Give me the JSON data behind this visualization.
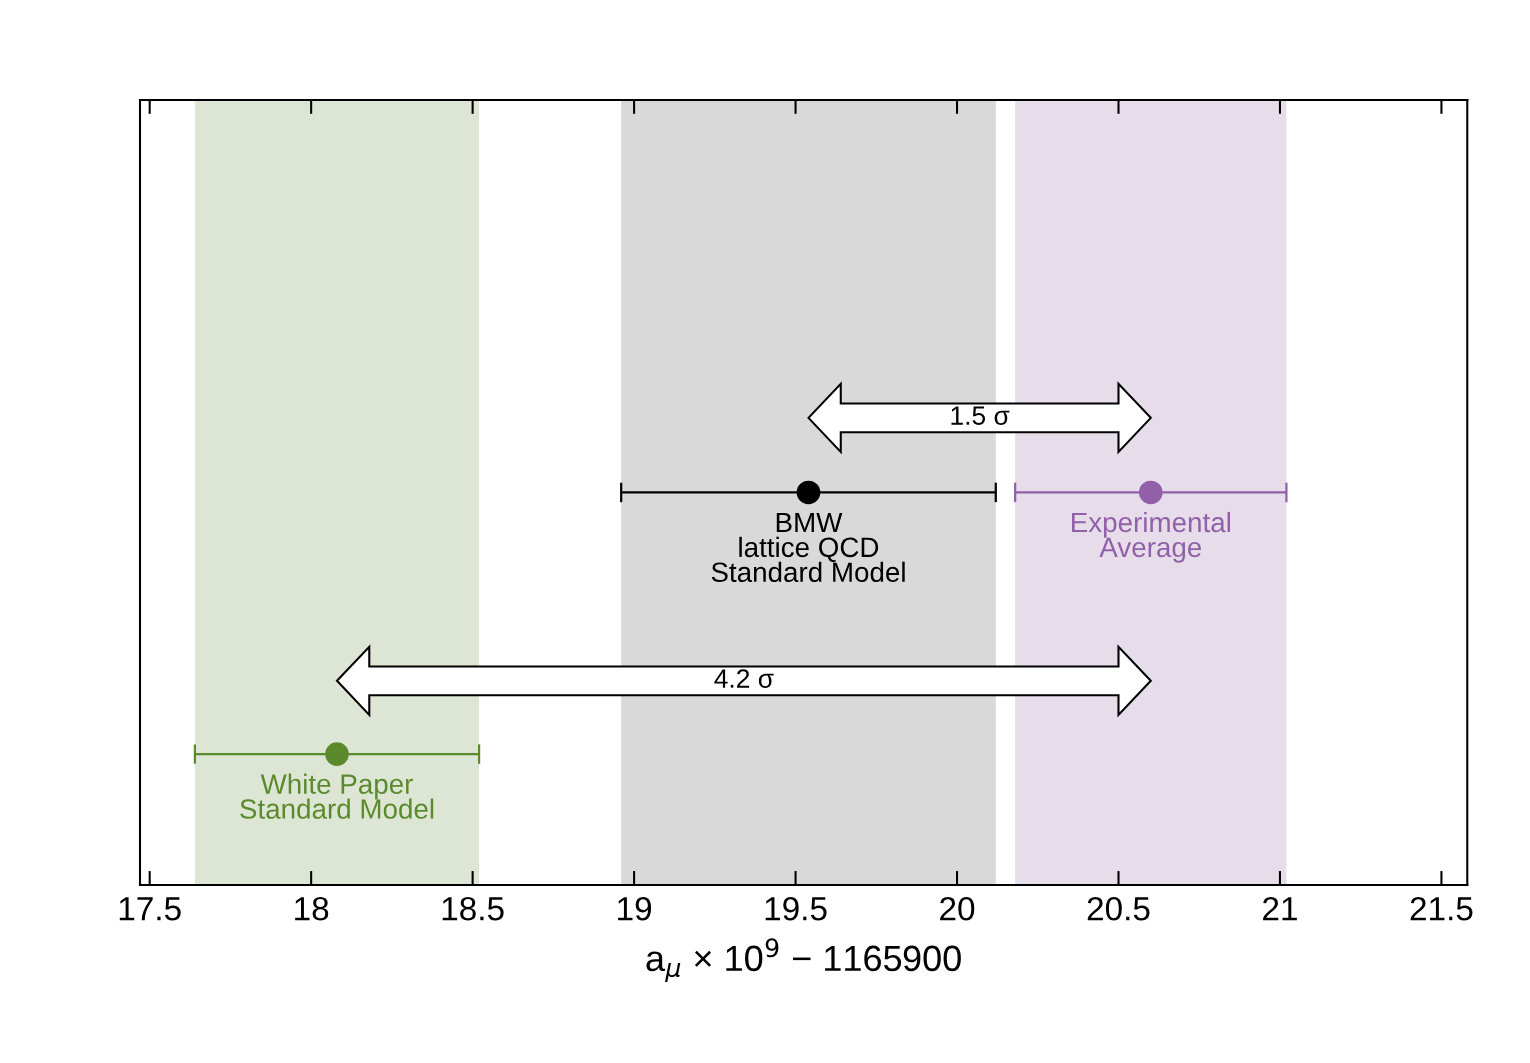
{
  "chart_data": {
    "type": "scatter",
    "orientation": "horizontal",
    "categories": [
      null,
      null,
      null
    ],
    "series": [
      {
        "name": "White Paper\nStandard Model",
        "color": "#5b8a2d",
        "values": [
          null,
          null,
          18.08
        ],
        "errors": [
          null,
          null,
          0.44
        ]
      },
      {
        "name": "BMW\nlattice QCD\nStandard Model",
        "color": "#000000",
        "values": [
          null,
          19.54,
          null
        ],
        "errors": [
          null,
          0.58,
          null
        ]
      },
      {
        "name": "Experimental\nAverage",
        "color": "#9160a8",
        "values": [
          null,
          20.6,
          null
        ],
        "errors": [
          null,
          0.42,
          null
        ]
      }
    ],
    "bands": [
      {
        "axis": "x",
        "from": 17.64,
        "to": 18.52,
        "color": "#dde6d5"
      },
      {
        "axis": "x",
        "from": 18.96,
        "to": 20.12,
        "color": "#d9d9d9"
      },
      {
        "axis": "x",
        "from": 20.18,
        "to": 21.02,
        "color": "#e6dcea"
      }
    ],
    "annotations": [
      "1.5 σ",
      "4.2 σ"
    ],
    "xlabel": "a$_{μ}$ × 10$^{9}$ − 1165900",
    "xlim": [
      17.47,
      21.58
    ],
    "xticks": [
      17.5,
      18,
      18.5,
      19,
      19.5,
      20,
      20.5,
      21,
      21.5
    ],
    "tick_labels": "x",
    "marker": "circle",
    "grid": false,
    "legend": false
  }
}
